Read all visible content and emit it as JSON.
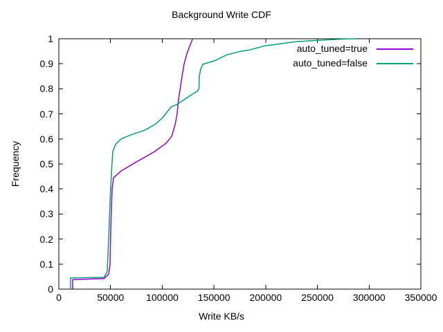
{
  "title": "Background Write CDF",
  "axes": {
    "xlabel": "Write KB/s",
    "ylabel": "Frequency",
    "x_tick_labels": [
      "0",
      "50000",
      "100000",
      "150000",
      "200000",
      "250000",
      "300000",
      "350000"
    ],
    "y_tick_labels": [
      "0",
      "0.1",
      "0.2",
      "0.3",
      "0.4",
      "0.5",
      "0.6",
      "0.7",
      "0.8",
      "0.9",
      "1"
    ]
  },
  "legend": {
    "items": [
      {
        "label": "auto_tuned=true",
        "color": "#9400d3"
      },
      {
        "label": "auto_tuned=false",
        "color": "#009e73"
      }
    ]
  },
  "colors": {
    "background": "#ffffff",
    "border": "#000000",
    "series_true": "#9400d3",
    "series_false": "#009e73"
  },
  "chart_data": {
    "type": "line",
    "title": "Background Write CDF",
    "xlabel": "Write KB/s",
    "ylabel": "Frequency",
    "xlim": [
      0,
      350000
    ],
    "ylim": [
      0,
      1
    ],
    "x_ticks": [
      0,
      50000,
      100000,
      150000,
      200000,
      250000,
      300000,
      350000
    ],
    "y_ticks": [
      0,
      0.1,
      0.2,
      0.3,
      0.4,
      0.5,
      0.6,
      0.7,
      0.8,
      0.9,
      1
    ],
    "grid": false,
    "legend_position": "top-right-inside",
    "series": [
      {
        "name": "auto_tuned=true",
        "color": "#9400d3",
        "points": [
          [
            13400,
            0
          ],
          [
            13400,
            0.038
          ],
          [
            43500,
            0.042
          ],
          [
            48200,
            0.06
          ],
          [
            49500,
            0.1
          ],
          [
            50200,
            0.24
          ],
          [
            50900,
            0.33
          ],
          [
            51500,
            0.4
          ],
          [
            52900,
            0.445
          ],
          [
            60200,
            0.472
          ],
          [
            73600,
            0.505
          ],
          [
            91700,
            0.547
          ],
          [
            103700,
            0.583
          ],
          [
            109100,
            0.61
          ],
          [
            112400,
            0.657
          ],
          [
            114400,
            0.7
          ],
          [
            115800,
            0.76
          ],
          [
            117100,
            0.795
          ],
          [
            119100,
            0.85
          ],
          [
            121100,
            0.9
          ],
          [
            123800,
            0.94
          ],
          [
            126500,
            0.97
          ],
          [
            128500,
            0.99
          ],
          [
            129200,
            1.0
          ]
        ]
      },
      {
        "name": "auto_tuned=false",
        "color": "#009e73",
        "points": [
          [
            11400,
            0
          ],
          [
            11400,
            0.045
          ],
          [
            43500,
            0.047
          ],
          [
            46800,
            0.07
          ],
          [
            48200,
            0.2
          ],
          [
            49500,
            0.35
          ],
          [
            50900,
            0.47
          ],
          [
            52200,
            0.55
          ],
          [
            54900,
            0.578
          ],
          [
            60200,
            0.6
          ],
          [
            68900,
            0.615
          ],
          [
            83700,
            0.636
          ],
          [
            93700,
            0.66
          ],
          [
            100400,
            0.685
          ],
          [
            108400,
            0.727
          ],
          [
            114400,
            0.738
          ],
          [
            120400,
            0.755
          ],
          [
            127800,
            0.775
          ],
          [
            133800,
            0.79
          ],
          [
            135500,
            0.8
          ],
          [
            135800,
            0.85
          ],
          [
            137200,
            0.88
          ],
          [
            139200,
            0.898
          ],
          [
            150600,
            0.912
          ],
          [
            161900,
            0.935
          ],
          [
            174000,
            0.948
          ],
          [
            184000,
            0.955
          ],
          [
            199400,
            0.972
          ],
          [
            210800,
            0.978
          ],
          [
            228900,
            0.988
          ],
          [
            250900,
            0.994
          ],
          [
            271000,
            0.998
          ],
          [
            287700,
            1.0
          ]
        ]
      }
    ]
  }
}
